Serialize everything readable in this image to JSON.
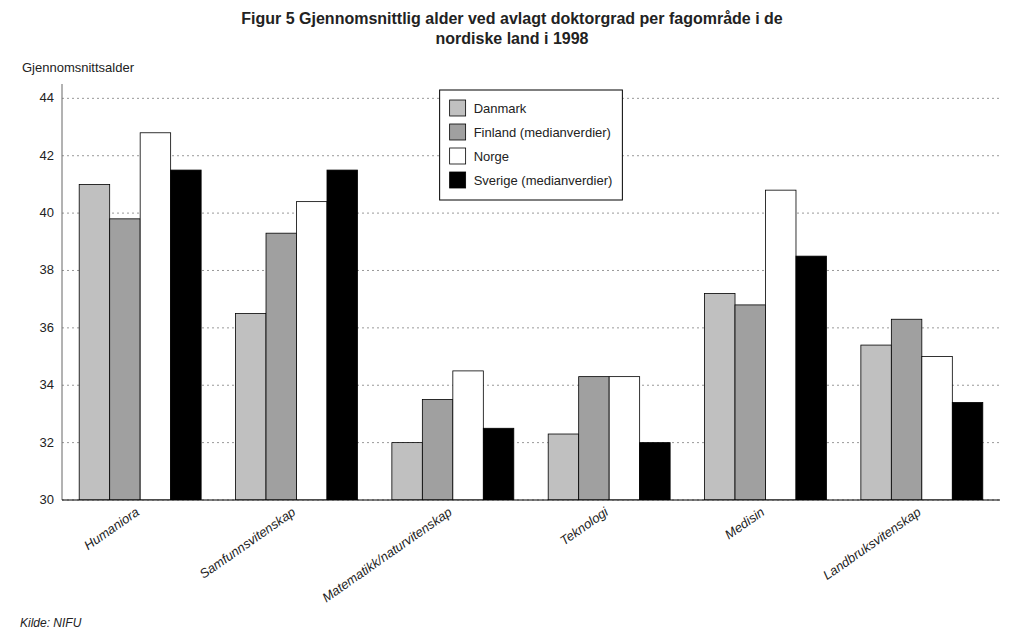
{
  "chart_data": {
    "type": "bar",
    "title": "Figur 5 Gjennomsnittlig alder ved avlagt doktorgrad per fagområde i de\nnordiske land i 1998",
    "ylabel": "Gjennomsnittsalder",
    "annotations": [
      "Kilde: NIFU"
    ],
    "categories": [
      "Humaniora",
      "Samfunnsvitenskap",
      "Matematikk/naturvitenskap",
      "Teknologi",
      "Medisin",
      "Landbruksvitenskap"
    ],
    "series": [
      {
        "name": "Danmark",
        "color": "#c0c0c0",
        "values": [
          41.0,
          36.5,
          32.0,
          32.3,
          37.2,
          35.4
        ]
      },
      {
        "name": "Finland (medianverdier)",
        "color": "#a0a0a0",
        "values": [
          39.8,
          39.3,
          33.5,
          34.3,
          36.8,
          36.3
        ]
      },
      {
        "name": "Norge",
        "color": "#ffffff",
        "values": [
          42.8,
          40.4,
          34.5,
          34.3,
          40.8,
          35.0
        ]
      },
      {
        "name": "Sverige (medianverdier)",
        "color": "#000000",
        "values": [
          41.5,
          41.5,
          32.5,
          32.0,
          38.5,
          33.4
        ]
      }
    ],
    "ylim": [
      30,
      44.5
    ],
    "yticks": [
      30,
      32,
      34,
      36,
      38,
      40,
      42,
      44
    ],
    "grid": true,
    "legend": "top"
  }
}
